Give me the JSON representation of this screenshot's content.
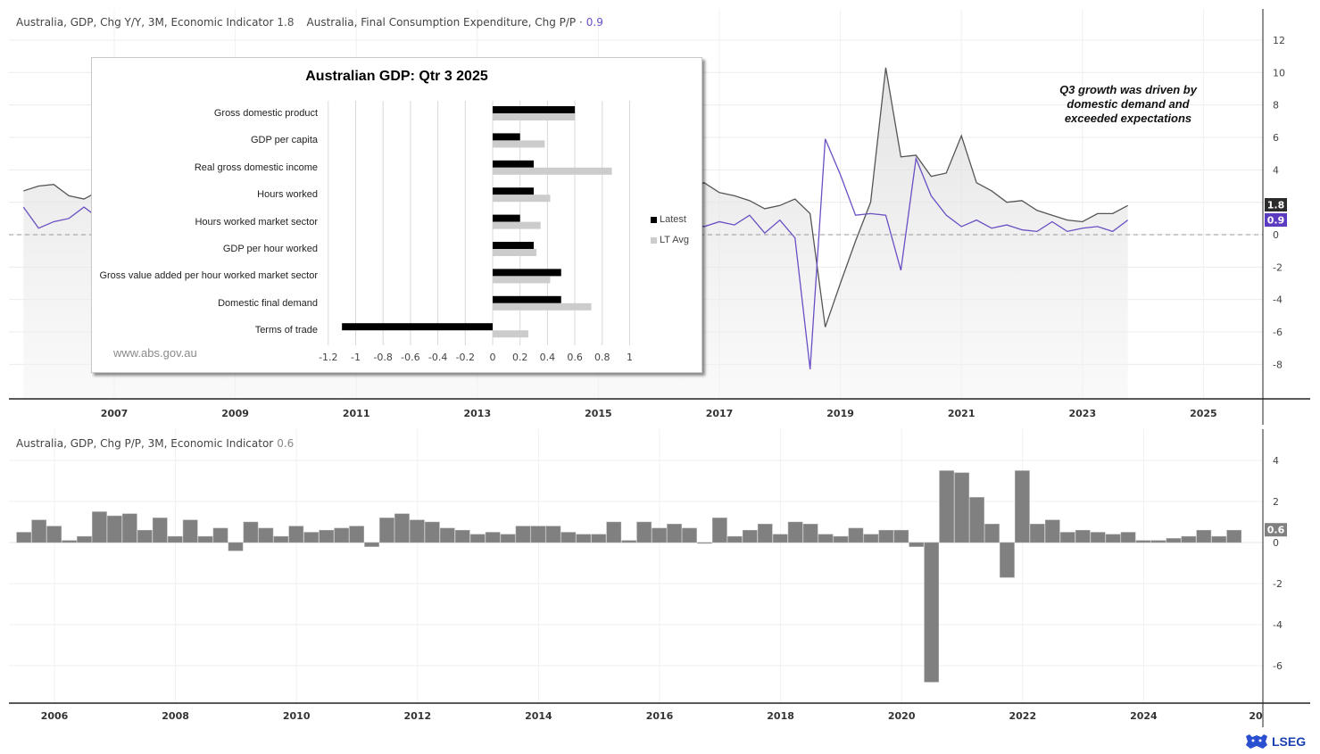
{
  "top_panel": {
    "legend": [
      {
        "label": "Australia, GDP, Chg Y/Y, 3M, Economic Indicator",
        "value": "1.8",
        "color": "#555555"
      },
      {
        "label": "Australia, Final Consumption Expenditure, Chg P/P ·",
        "value": "0.9",
        "color": "#6a4fc4"
      }
    ],
    "badges": [
      {
        "value": "1.8",
        "bg": "#2b2b2b"
      },
      {
        "value": "0.9",
        "bg": "#5b3bbf"
      }
    ],
    "annotation": "Q3 growth was driven by domestic demand and exceeded expectations"
  },
  "bottom_panel": {
    "legend": {
      "label": "Australia, GDP, Chg P/P, 3M, Economic Indicator",
      "value": "0.6"
    },
    "badge": {
      "value": "0.6",
      "bg": "#808080"
    }
  },
  "inset": {
    "title": "Australian GDP:  Qtr 3 2025",
    "source": "www.abs.gov.au",
    "legend": [
      {
        "label": "Latest",
        "color": "#000000"
      },
      {
        "label": "LT Avg",
        "color": "#cccccc"
      }
    ]
  },
  "branding": {
    "logo_text": "LSEG"
  },
  "chart_data": [
    {
      "type": "line",
      "title": "",
      "series": [
        {
          "name": "Australia, GDP, Chg Y/Y, 3M, Economic Indicator",
          "color": "#555555",
          "start": 2005.5,
          "step": 0.25,
          "values": [
            2.7,
            3.0,
            3.1,
            2.4,
            2.2,
            2.7,
            2.9,
            3.4,
            3.6,
            4.0,
            3.2,
            2.7,
            1.9,
            1.3,
            0.9,
            1.5,
            2.0,
            2.5,
            2.9,
            3.3,
            2.6,
            2.5,
            2.7,
            3.3,
            3.8,
            3.2,
            2.8,
            2.1,
            2.5,
            2.2,
            2.1,
            2.2,
            2.5,
            2.8,
            2.9,
            2.7,
            2.4,
            2.2,
            2.1,
            2.7,
            2.6,
            2.4,
            3.0,
            2.3,
            3.0,
            3.2,
            2.6,
            2.4,
            2.1,
            1.6,
            1.8,
            2.2,
            1.3,
            -5.7,
            -3.0,
            -0.4,
            2.0,
            10.3,
            4.8,
            4.9,
            3.6,
            3.8,
            6.1,
            3.2,
            2.7,
            2.0,
            2.1,
            1.5,
            1.2,
            0.9,
            0.8,
            1.3,
            1.3,
            1.8
          ],
          "last_value": 1.8
        },
        {
          "name": "Australia, Final Consumption Expenditure, Chg P/P",
          "color": "#6a4fc4",
          "start": 2005.5,
          "step": 0.25,
          "values": [
            1.7,
            0.4,
            0.8,
            1.0,
            1.7,
            1.0,
            1.2,
            1.5,
            0.6,
            1.3,
            0.5,
            0.3,
            0.6,
            1.2,
            0.9,
            0.8,
            1.1,
            0.7,
            1.1,
            0.9,
            0.7,
            1.0,
            0.8,
            0.7,
            0.5,
            0.8,
            0.6,
            0.5,
            0.9,
            0.8,
            0.7,
            0.8,
            0.7,
            0.8,
            0.6,
            0.7,
            0.5,
            0.6,
            0.8,
            0.7,
            0.8,
            0.5,
            1.3,
            0.9,
            0.7,
            0.5,
            0.8,
            0.6,
            1.2,
            0.1,
            0.9,
            -0.2,
            -8.3,
            5.9,
            3.7,
            1.2,
            1.3,
            1.2,
            -2.2,
            4.7,
            2.4,
            1.2,
            0.5,
            0.9,
            0.4,
            0.6,
            0.3,
            0.2,
            0.8,
            0.2,
            0.4,
            0.5,
            0.2,
            0.9
          ],
          "last_value": 0.9
        }
      ],
      "xlabel": "",
      "ylabel": "",
      "x_ticks": [
        "2007",
        "2009",
        "2011",
        "2013",
        "2015",
        "2017",
        "2019",
        "2021",
        "2023",
        "2025"
      ],
      "y_ticks": [
        12,
        10,
        8,
        6,
        4,
        2,
        0,
        -2,
        -4,
        -6,
        -8
      ],
      "ylim": [
        -10,
        13
      ],
      "grid": true,
      "zero_line": "dashed",
      "annotation": "Q3 growth was driven by domestic demand and exceeded expectations"
    },
    {
      "type": "bar",
      "title": "Australian GDP:  Qtr 3 2025",
      "orientation": "horizontal",
      "categories": [
        "Gross domestic product",
        "GDP per capita",
        "Real gross domestic income",
        "Hours worked",
        "Hours worked market sector",
        "GDP per hour worked",
        "Gross value added per hour worked market sector",
        "Domestic final demand",
        "Terms of trade"
      ],
      "series": [
        {
          "name": "Latest",
          "color": "#000000",
          "values": [
            0.6,
            0.2,
            0.3,
            0.3,
            0.2,
            0.3,
            0.5,
            0.5,
            -1.1
          ]
        },
        {
          "name": "LT Avg",
          "color": "#cccccc",
          "values": [
            0.6,
            0.38,
            0.87,
            0.42,
            0.35,
            0.32,
            0.42,
            0.72,
            0.26
          ]
        }
      ],
      "x_ticks": [
        "-1.2",
        "-1",
        "-0.8",
        "-0.6",
        "-0.4",
        "-0.2",
        "0",
        "0.2",
        "0.4",
        "0.6",
        "0.8",
        "1"
      ],
      "xlim": [
        -1.2,
        1.0
      ],
      "grid": true,
      "legend_position": "right",
      "source": "www.abs.gov.au"
    },
    {
      "type": "bar",
      "title": "",
      "series": [
        {
          "name": "Australia, GDP, Chg P/P, 3M, Economic Indicator",
          "color": "#808080",
          "start": 2005.5,
          "step": 0.25,
          "values": [
            0.5,
            1.1,
            0.8,
            0.1,
            0.3,
            1.5,
            1.3,
            1.4,
            0.6,
            1.2,
            0.3,
            1.1,
            0.3,
            0.7,
            -0.4,
            1.0,
            0.7,
            0.3,
            0.8,
            0.5,
            0.6,
            0.7,
            0.8,
            -0.2,
            1.2,
            1.4,
            1.1,
            1.0,
            0.7,
            0.6,
            0.4,
            0.5,
            0.4,
            0.8,
            0.8,
            0.8,
            0.5,
            0.4,
            0.4,
            1.0,
            0.1,
            1.0,
            0.7,
            0.9,
            0.7,
            0.0,
            1.2,
            0.3,
            0.6,
            0.9,
            0.4,
            1.0,
            0.9,
            0.4,
            0.3,
            0.7,
            0.4,
            0.6,
            0.6,
            -0.2,
            -6.8,
            3.5,
            3.4,
            2.2,
            0.9,
            -1.7,
            3.5,
            0.9,
            1.1,
            0.5,
            0.6,
            0.5,
            0.4,
            0.5,
            0.1,
            0.1,
            0.2,
            0.3,
            0.6,
            0.3,
            0.6
          ],
          "last_value": 0.6
        }
      ],
      "x_ticks": [
        "2006",
        "2008",
        "2010",
        "2012",
        "2014",
        "2016",
        "2018",
        "2020",
        "2022",
        "2024",
        "20"
      ],
      "y_ticks": [
        4,
        2,
        0,
        -2,
        -4,
        -6
      ],
      "ylim": [
        -7.8,
        5.5
      ],
      "grid": true
    }
  ]
}
